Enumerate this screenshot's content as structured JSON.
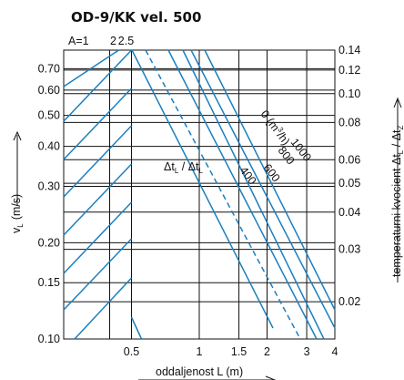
{
  "chart_data": {
    "type": "line",
    "title": "OD-9/KK vel. 500",
    "xlabel": "oddaljenost L (m)",
    "ylabel": "v",
    "ylabel_sub": "L",
    "ylabel_unit": "(m/s)",
    "y2label_prefix": "temperaturni kvocient  Δt",
    "y2label_sub1": "L",
    "y2label_mid": " / Δt",
    "y2label_sub2": "Z",
    "x_scale": "log",
    "y_scale": "log",
    "x_ticks": [
      "0.5",
      "1",
      "1.5",
      "2",
      "3",
      "4"
    ],
    "y_ticks": [
      "0.10",
      "0.15",
      "0.20",
      "0.30",
      "0.40",
      "0.50",
      "0.60",
      "0.70"
    ],
    "y2_ticks": [
      "0.02",
      "0.03",
      "0.04",
      "0.05",
      "0.06",
      "0.08",
      "0.10",
      "0.12",
      "0.14"
    ],
    "top_labels": [
      "A=1",
      "2",
      "2.5"
    ],
    "series_A": [
      {
        "name": "A=1",
        "type": "family of diagonal lines"
      },
      {
        "name": "2"
      },
      {
        "name": "2.5"
      }
    ],
    "series_flow": [
      {
        "name": "0 (m³/h)"
      },
      {
        "name": "1000"
      },
      {
        "name": "800"
      },
      {
        "name": "600"
      },
      {
        "name": "400",
        "style": "dashed"
      }
    ],
    "curve_labels": {
      "q0": "0 (m",
      "q0_sup": "3",
      "q0_end": "/h)",
      "q1000": "1000",
      "q800": "800",
      "q600": "600",
      "q400": "400",
      "ratio": "Δt",
      "ratio_sub1": "L",
      "ratio_mid": " / Δt",
      "ratio_sub2": "L"
    },
    "colors": {
      "curves": "#1a7fbf",
      "grid": "#111111"
    }
  }
}
